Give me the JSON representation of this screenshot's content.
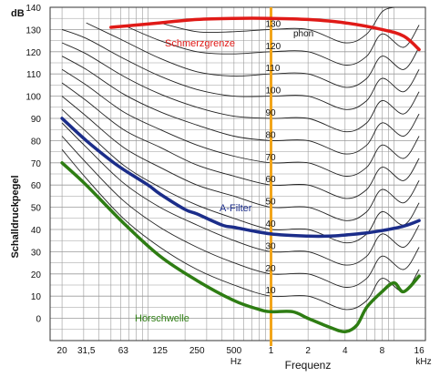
{
  "chart_data": {
    "type": "line",
    "ylabel": "Schalldruckpegel",
    "yunit": "dB",
    "xlabel": "Frequenz",
    "x_scale": "log",
    "xlim_hz": [
      16,
      18000
    ],
    "ylim_db": [
      -10,
      140
    ],
    "yticks": [
      "0",
      "10",
      "20",
      "30",
      "40",
      "50",
      "60",
      "70",
      "80",
      "90",
      "100",
      "110",
      "120",
      "130",
      "140"
    ],
    "xticks": [
      {
        "label": "20",
        "hz": 20
      },
      {
        "label": "31,5",
        "hz": 31.5
      },
      {
        "label": "63",
        "hz": 63
      },
      {
        "label": "125",
        "hz": 125
      },
      {
        "label": "250",
        "hz": 250
      },
      {
        "label": "500",
        "hz": 500
      },
      {
        "label": "1",
        "hz": 1000
      },
      {
        "label": "2",
        "hz": 2000
      },
      {
        "label": "4",
        "hz": 4000
      },
      {
        "label": "8",
        "hz": 8000
      },
      {
        "label": "16",
        "hz": 16000
      }
    ],
    "xunit_hz": "Hz",
    "xunit_khz": "kHz",
    "phon_unit": "phon",
    "phon_labels": [
      "10",
      "20",
      "30",
      "40",
      "50",
      "60",
      "70",
      "80",
      "90",
      "100",
      "110",
      "120",
      "130"
    ],
    "reference_line_hz": 1000,
    "contours": [
      {
        "phon": 10,
        "x": [
          20,
          31.5,
          63,
          125,
          250,
          500,
          1000,
          2000,
          4000,
          6000,
          8000,
          12000,
          16000
        ],
        "y": [
          76,
          63,
          45,
          32,
          22,
          15,
          10,
          10,
          4,
          8,
          18,
          12,
          22
        ]
      },
      {
        "phon": 20,
        "x": [
          20,
          31.5,
          63,
          125,
          250,
          500,
          1000,
          2000,
          4000,
          6000,
          8000,
          12000,
          16000
        ],
        "y": [
          82,
          70,
          53,
          41,
          32,
          25,
          20,
          20,
          14,
          18,
          28,
          22,
          32
        ]
      },
      {
        "phon": 30,
        "x": [
          20,
          31.5,
          63,
          125,
          250,
          500,
          1000,
          2000,
          4000,
          6000,
          8000,
          12000,
          16000
        ],
        "y": [
          88,
          77,
          61,
          50,
          42,
          35,
          30,
          30,
          24,
          28,
          38,
          32,
          42
        ]
      },
      {
        "phon": 40,
        "x": [
          20,
          31.5,
          63,
          125,
          250,
          500,
          1000,
          2000,
          4000,
          6000,
          8000,
          12000,
          16000
        ],
        "y": [
          94,
          84,
          69,
          59,
          51,
          45,
          40,
          40,
          34,
          38,
          48,
          42,
          52
        ]
      },
      {
        "phon": 50,
        "x": [
          20,
          31.5,
          63,
          125,
          250,
          500,
          1000,
          2000,
          4000,
          6000,
          8000,
          12000,
          16000
        ],
        "y": [
          100,
          91,
          77,
          68,
          60,
          55,
          50,
          50,
          44,
          48,
          58,
          52,
          62
        ]
      },
      {
        "phon": 60,
        "x": [
          20,
          31.5,
          63,
          125,
          250,
          500,
          1000,
          2000,
          4000,
          6000,
          8000,
          12000,
          16000
        ],
        "y": [
          106,
          98,
          85,
          77,
          69,
          64,
          60,
          60,
          54,
          58,
          68,
          62,
          72
        ]
      },
      {
        "phon": 70,
        "x": [
          20,
          31.5,
          63,
          125,
          250,
          500,
          1000,
          2000,
          4000,
          6000,
          8000,
          12000,
          16000
        ],
        "y": [
          112,
          105,
          93,
          85,
          78,
          73,
          70,
          70,
          64,
          68,
          78,
          72,
          82
        ]
      },
      {
        "phon": 80,
        "x": [
          20,
          31.5,
          63,
          125,
          250,
          500,
          1000,
          2000,
          4000,
          6000,
          8000,
          12000,
          16000
        ],
        "y": [
          118,
          112,
          101,
          93,
          87,
          82,
          80,
          80,
          74,
          78,
          88,
          82,
          92
        ]
      },
      {
        "phon": 90,
        "x": [
          20,
          31.5,
          63,
          125,
          250,
          500,
          1000,
          2000,
          4000,
          6000,
          8000,
          12000,
          16000
        ],
        "y": [
          124,
          119,
          109,
          101,
          95,
          91,
          90,
          90,
          84,
          88,
          98,
          92,
          102
        ]
      },
      {
        "phon": 100,
        "x": [
          20,
          31.5,
          63,
          125,
          250,
          500,
          1000,
          2000,
          4000,
          6000,
          8000,
          12000,
          16000
        ],
        "y": [
          130,
          126,
          117,
          109,
          103,
          100,
          100,
          100,
          94,
          98,
          108,
          102,
          112
        ]
      },
      {
        "phon": 110,
        "x": [
          31.5,
          63,
          125,
          250,
          500,
          1000,
          2000,
          4000,
          6000,
          8000,
          12000,
          16000
        ],
        "y": [
          133,
          125,
          117,
          111,
          109,
          110,
          110,
          104,
          108,
          118,
          112,
          122
        ]
      },
      {
        "phon": 120,
        "x": [
          63,
          125,
          250,
          500,
          1000,
          2000,
          4000,
          6000,
          8000,
          12000,
          16000
        ],
        "y": [
          132,
          125,
          120,
          119,
          120,
          120,
          114,
          118,
          128,
          122,
          132
        ]
      },
      {
        "phon": 130,
        "x": [
          125,
          250,
          500,
          1000,
          2000,
          4000,
          6000,
          8000,
          10000
        ],
        "y": [
          133,
          129,
          129,
          130,
          130,
          124,
          128,
          138,
          140
        ]
      }
    ],
    "series": [
      {
        "name": "Schmerzgrenze",
        "color": "#e01a17",
        "x": [
          50,
          80,
          125,
          250,
          500,
          1000,
          2000,
          4000,
          8000,
          12000,
          16000
        ],
        "y": [
          131,
          132,
          133,
          134.5,
          135,
          135,
          134.5,
          133,
          130,
          127,
          121
        ]
      },
      {
        "name": "A-Filter",
        "color": "#1b2d8a",
        "x": [
          20,
          31.5,
          50,
          63,
          100,
          125,
          200,
          250,
          400,
          500,
          1000,
          2000,
          3000,
          4000,
          6000,
          8000,
          12000,
          16000
        ],
        "y": [
          90,
          80,
          71,
          67,
          60,
          56,
          49,
          47,
          42,
          41,
          38,
          37,
          37,
          37.5,
          38.5,
          39.5,
          41.5,
          44
        ]
      },
      {
        "name": "Hörschwelle",
        "color": "#2e7d13",
        "x": [
          20,
          31.5,
          63,
          125,
          250,
          500,
          800,
          1000,
          1500,
          2000,
          3000,
          4000,
          5000,
          6000,
          8000,
          10000,
          12000,
          16000
        ],
        "y": [
          70,
          60,
          43,
          28,
          17,
          8,
          4,
          3,
          3,
          0,
          -4,
          -6,
          -3,
          5,
          12,
          16,
          12,
          19
        ]
      }
    ]
  }
}
